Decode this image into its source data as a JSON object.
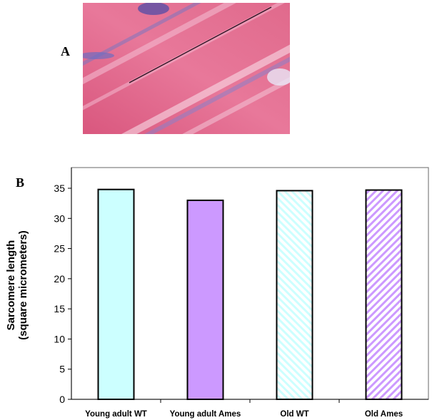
{
  "panels": {
    "a_label": "A",
    "b_label": "B"
  },
  "micrograph": {
    "description_icon": "muscle-micrograph-image",
    "colors": {
      "tissue": "#e0658a",
      "stain": "#6a68b8"
    }
  },
  "chart_data": {
    "type": "bar",
    "title": "",
    "xlabel": "",
    "ylabel_line1": "Sarcomere length",
    "ylabel_line2": "(square micrometers)",
    "ylim": [
      0,
      35
    ],
    "yticks": [
      0,
      5,
      10,
      15,
      20,
      25,
      30,
      35
    ],
    "grid": false,
    "categories": [
      "Young adult WT",
      "Young adult Ames",
      "Old WT",
      "Old Ames"
    ],
    "values": [
      34.8,
      33.0,
      34.6,
      34.7
    ],
    "bar_styles": [
      {
        "fill": "#ccffff",
        "pattern": "solid"
      },
      {
        "fill": "#cc99ff",
        "pattern": "solid"
      },
      {
        "fill": "#ccffff",
        "pattern": "diagonal-hatch"
      },
      {
        "fill": "#cc99ff",
        "pattern": "diagonal-hatch"
      }
    ]
  }
}
